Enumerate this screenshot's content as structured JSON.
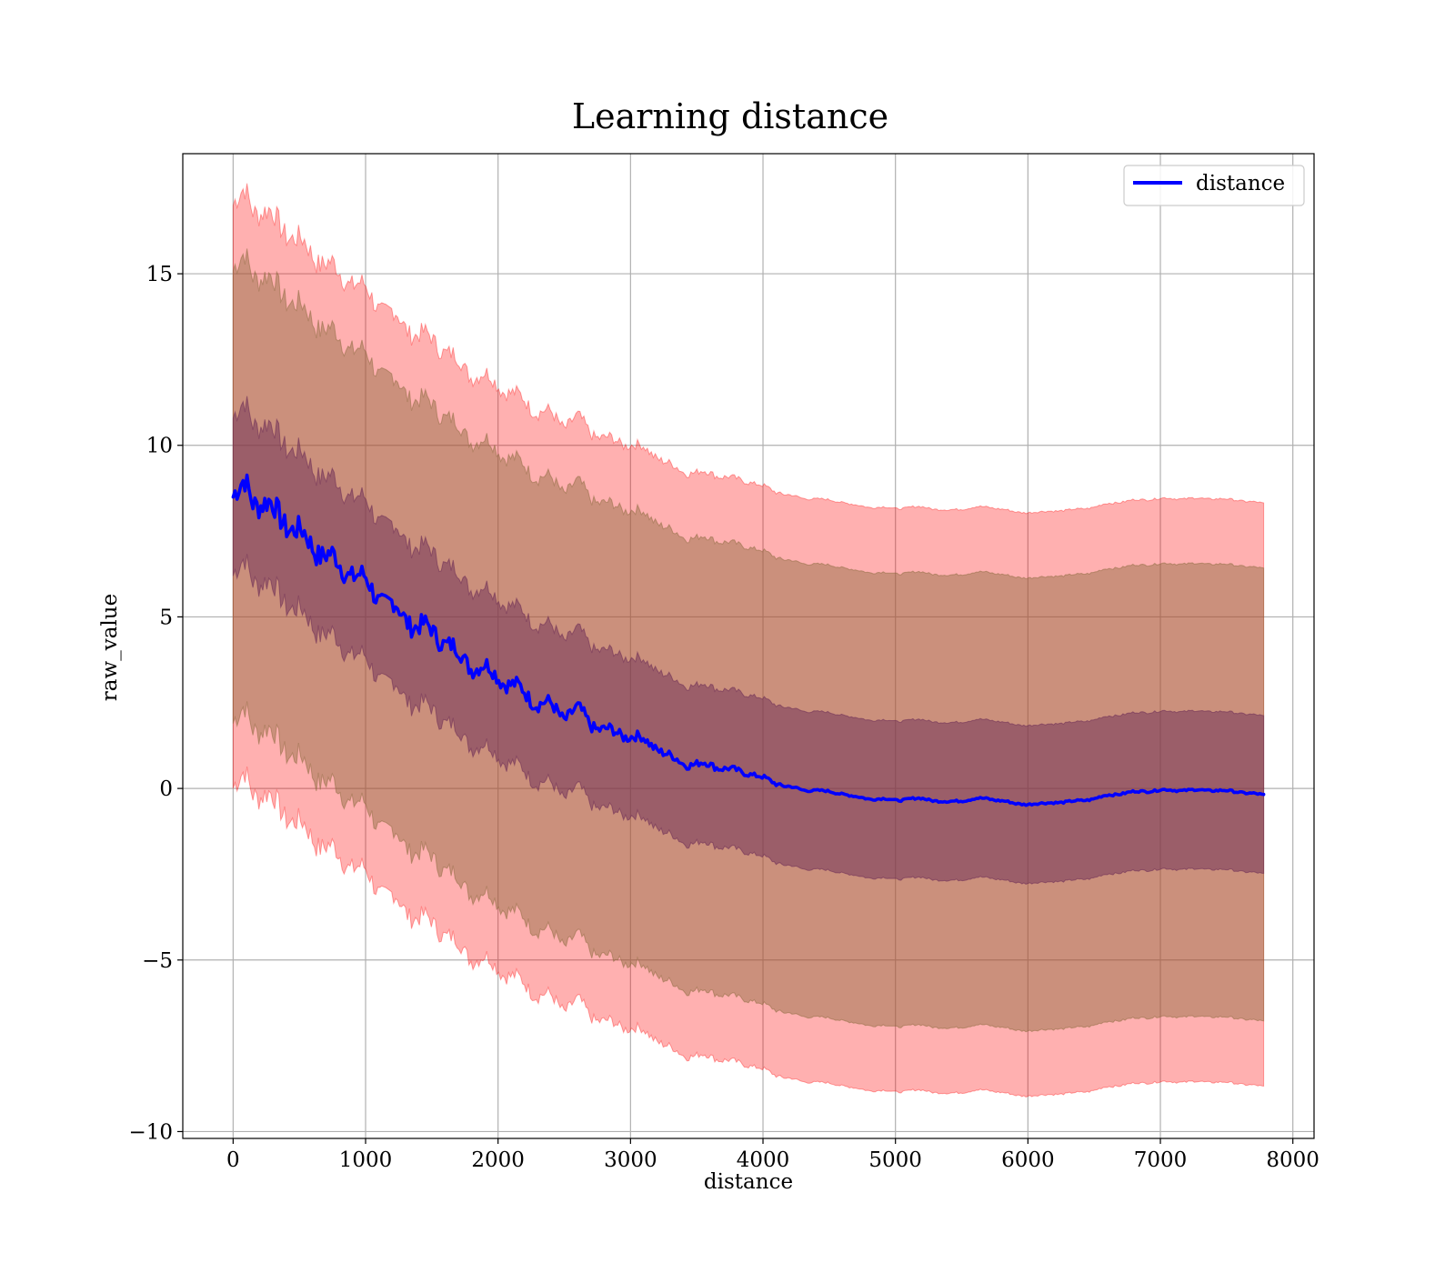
{
  "chart_data": {
    "type": "line",
    "title": "Learning distance",
    "xlabel": "distance",
    "ylabel": "raw_value",
    "xlim": [
      -380,
      8160
    ],
    "ylim": [
      -10.2,
      18.5
    ],
    "xticks": [
      0,
      1000,
      2000,
      3000,
      4000,
      5000,
      6000,
      7000,
      8000
    ],
    "xtick_labels": [
      "0",
      "1000",
      "2000",
      "3000",
      "4000",
      "5000",
      "6000",
      "7000",
      "8000"
    ],
    "yticks": [
      -10,
      -5,
      0,
      5,
      10,
      15
    ],
    "ytick_labels": [
      "−10",
      "−5",
      "0",
      "5",
      "10",
      "15"
    ],
    "grid": true,
    "legend": {
      "placement": "top-right",
      "entries": [
        "distance"
      ]
    },
    "colors": {
      "line": "#0000ff",
      "band_outer": "#ff0000",
      "band_middle": "#8b6a3d",
      "band_inner": "#6b2c55",
      "frame": "#000000"
    },
    "band_half_widths": {
      "outer": 8.5,
      "middle": 6.6,
      "inner": 2.3
    },
    "series": [
      {
        "name": "distance",
        "x": [
          0,
          50,
          90,
          150,
          200,
          300,
          400,
          500,
          600,
          700,
          800,
          900,
          1000,
          1100,
          1200,
          1300,
          1400,
          1500,
          1600,
          1700,
          1800,
          1900,
          2000,
          2100,
          2200,
          2300,
          2400,
          2500,
          2600,
          2700,
          2800,
          2900,
          3000,
          3100,
          3200,
          3300,
          3400,
          3500,
          3600,
          3700,
          3800,
          3900,
          4000,
          4100,
          4200,
          4300,
          4400,
          4500,
          4600,
          4700,
          4800,
          4900,
          5000,
          5100,
          5200,
          5300,
          5400,
          5500,
          5600,
          5700,
          5800,
          5900,
          6000,
          6100,
          6200,
          6300,
          6400,
          6500,
          6600,
          6800,
          7000,
          7200,
          7400,
          7600,
          7780
        ],
        "values": [
          8.5,
          8.6,
          8.85,
          8.5,
          8.4,
          8.1,
          7.8,
          7.4,
          7.1,
          6.8,
          6.5,
          6.3,
          6.0,
          5.6,
          5.3,
          5.0,
          4.7,
          4.6,
          4.3,
          3.9,
          3.6,
          3.5,
          3.3,
          3.0,
          2.8,
          2.5,
          2.4,
          2.1,
          2.3,
          1.9,
          1.7,
          1.6,
          1.55,
          1.4,
          1.2,
          0.9,
          0.75,
          0.7,
          0.7,
          0.6,
          0.5,
          0.45,
          0.3,
          0.15,
          0.05,
          -0.05,
          -0.05,
          -0.1,
          -0.15,
          -0.25,
          -0.3,
          -0.3,
          -0.35,
          -0.3,
          -0.3,
          -0.35,
          -0.4,
          -0.35,
          -0.3,
          -0.3,
          -0.35,
          -0.45,
          -0.45,
          -0.45,
          -0.4,
          -0.4,
          -0.35,
          -0.3,
          -0.2,
          -0.1,
          -0.05,
          -0.05,
          -0.05,
          -0.1,
          -0.2
        ]
      }
    ]
  }
}
